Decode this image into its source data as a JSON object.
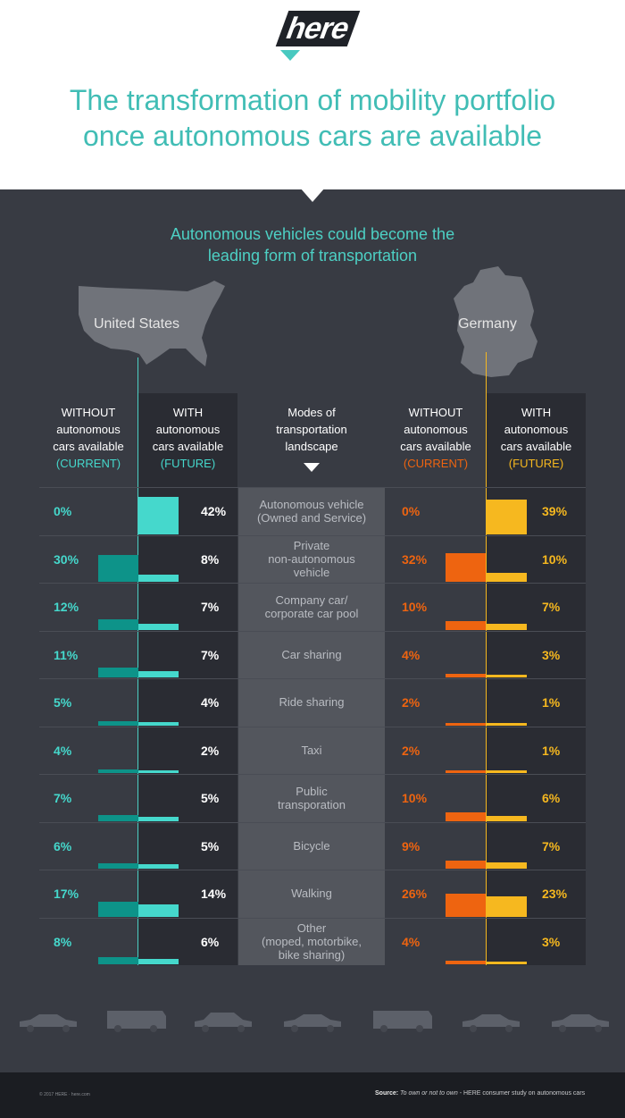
{
  "header": {
    "logo_text": "here",
    "title_line1": "The transformation of mobility portfolio",
    "title_line2": "once autonomous cars are available"
  },
  "subtitle_line1": "Autonomous vehicles could become the",
  "subtitle_line2": "leading form of transportation",
  "maps": {
    "us_label": "United States",
    "de_label": "Germany"
  },
  "columns": {
    "without": [
      "WITHOUT",
      "autonomous",
      "cars available"
    ],
    "with": [
      "WITH",
      "autonomous",
      "cars available"
    ],
    "modes": [
      "Modes of",
      "transportation",
      "landscape"
    ],
    "current_tag": "(CURRENT)",
    "future_tag": "(FUTURE)"
  },
  "colors": {
    "us_current": "#0d9389",
    "us_future": "#45d8cc",
    "de_current": "#ee6410",
    "de_future": "#f6b81f",
    "panel_dark": "#2a2c33",
    "panel_mid": "#383b43",
    "modes_bg": "#53565d"
  },
  "chart_data": {
    "type": "bar",
    "categories": [
      [
        "Autonomous vehicle",
        "(Owned and Service)"
      ],
      [
        "Private",
        "non-autonomous",
        "vehicle"
      ],
      [
        "Company car/",
        "corporate car pool"
      ],
      [
        "Car sharing"
      ],
      [
        "Ride sharing"
      ],
      [
        "Taxi"
      ],
      [
        "Public",
        "transporation"
      ],
      [
        "Bicycle"
      ],
      [
        "Walking"
      ],
      [
        "Other",
        "(moped, motorbike,",
        "bike sharing)"
      ]
    ],
    "series": [
      {
        "name": "United States WITHOUT autonomous cars available (CURRENT)",
        "values": [
          0,
          30,
          12,
          11,
          5,
          4,
          7,
          6,
          17,
          8
        ]
      },
      {
        "name": "United States WITH autonomous cars available (FUTURE)",
        "values": [
          42,
          8,
          7,
          7,
          4,
          2,
          5,
          5,
          14,
          6
        ]
      },
      {
        "name": "Germany WITHOUT autonomous cars available (CURRENT)",
        "values": [
          0,
          32,
          10,
          4,
          2,
          2,
          10,
          9,
          26,
          4
        ]
      },
      {
        "name": "Germany WITH autonomous cars available (FUTURE)",
        "values": [
          39,
          10,
          7,
          3,
          1,
          1,
          6,
          7,
          23,
          3
        ]
      }
    ],
    "unit": "%"
  },
  "footer": {
    "copyright": "© 2017 HERE · here.com",
    "source_label": "Source:",
    "source_italic": "To own or not to own",
    "source_rest": " - HERE consumer study on autonomous cars"
  }
}
